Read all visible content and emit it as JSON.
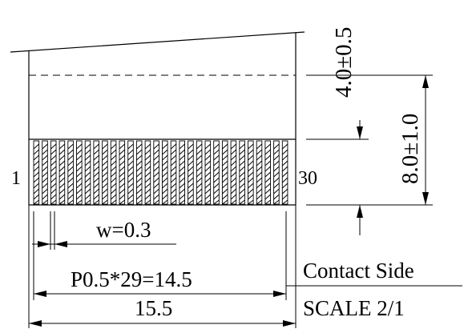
{
  "drawing": {
    "pin_first_label": "1",
    "pin_last_label": "30",
    "dim_width_label": "w=0.3",
    "dim_pitch_label": "P0.5*29=14.5",
    "dim_total_label": "15.5",
    "dim_stiffener_label": "4.0±0.5",
    "dim_contact_length_label": "8.0±1.0",
    "contact_side_label": "Contact Side",
    "scale_label": "SCALE 2/1",
    "contact_count": 30
  }
}
